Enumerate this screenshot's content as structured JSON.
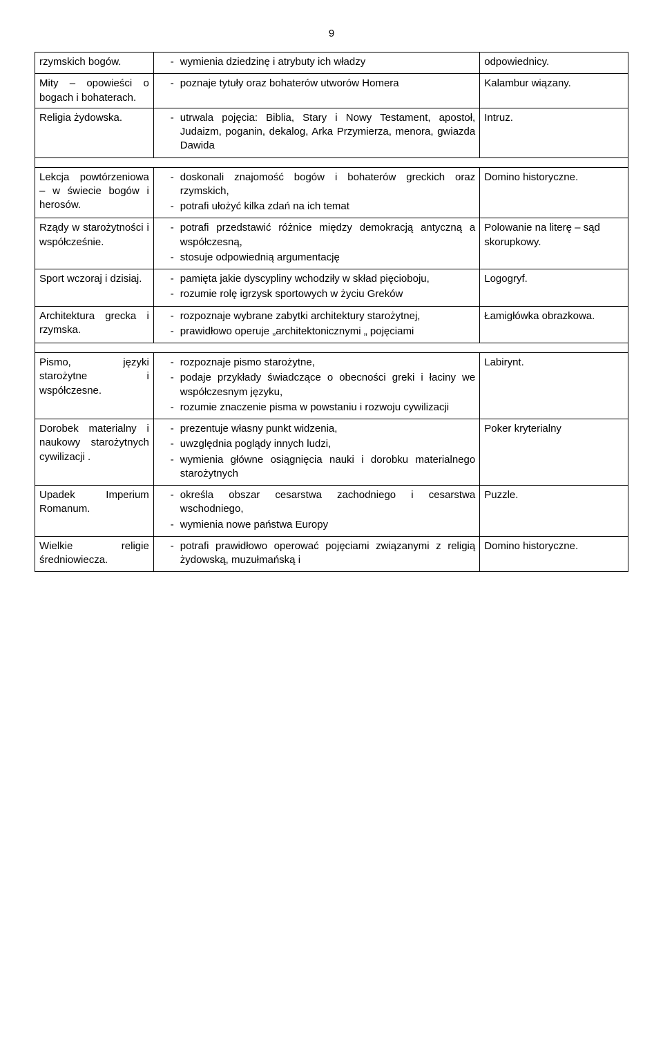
{
  "page_number": "9",
  "colors": {
    "text": "#000000",
    "border": "#000000",
    "background": "#ffffff"
  },
  "rows": [
    {
      "col1": "rzymskich bogów.",
      "col2_items": [
        "wymienia dziedzinę i atrybuty ich władzy"
      ],
      "col3": "odpowiednicy."
    },
    {
      "col1": "Mity – opowieści o bogach i bohaterach.",
      "col2_items": [
        "poznaje tytuły oraz bohaterów utworów Homera"
      ],
      "col3": "Kalambur wiązany."
    },
    {
      "col1": "Religia żydowska.",
      "col2_items": [
        "utrwala pojęcia: Biblia, Stary i Nowy Testament, apostoł, Judaizm, poganin, dekalog, Arka Przymierza, menora, gwiazda Dawida"
      ],
      "col3": "Intruz."
    },
    {
      "col1": "Lekcja powtórzeniowa – w świecie bogów i herosów.",
      "col2_items": [
        "doskonali znajomość bogów i bohaterów greckich oraz rzymskich,",
        "potrafi ułożyć kilka zdań na ich temat"
      ],
      "col3": "Domino historyczne."
    },
    {
      "col1": "Rządy w starożytności i współcześnie.",
      "col2_items": [
        "potrafi przedstawić różnice między demokracją antyczną a współczesną,",
        "stosuje odpowiednią argumentację"
      ],
      "col3": "Polowanie na literę – sąd skorupkowy."
    },
    {
      "col1": "Sport wczoraj i dzisiaj.",
      "col2_items": [
        "pamięta jakie dyscypliny wchodziły w skład pięcioboju,",
        "rozumie rolę igrzysk sportowych w życiu Greków"
      ],
      "col3": "Logogryf."
    },
    {
      "col1": "Architektura grecka i rzymska.",
      "col2_items": [
        "rozpoznaje wybrane zabytki architektury starożytnej,",
        "prawidłowo operuje „architektonicznymi „ pojęciami"
      ],
      "col3": "Łamigłówka obrazkowa."
    },
    {
      "col1": "Pismo, języki starożytne i współczesne.",
      "col2_items": [
        "rozpoznaje pismo starożytne,",
        "podaje przykłady świadczące o obecności greki i łaciny we współczesnym języku,",
        "rozumie znaczenie pisma w powstaniu i rozwoju cywilizacji"
      ],
      "col3": "Labirynt."
    },
    {
      "col1": "Dorobek materialny i naukowy starożytnych cywilizacji .",
      "col2_items": [
        "prezentuje własny punkt widzenia,",
        "uwzględnia poglądy innych ludzi,",
        "wymienia główne osiągnięcia nauki i dorobku materialnego starożytnych"
      ],
      "col3": "Poker kryterialny"
    },
    {
      "col1": "Upadek Imperium Romanum.",
      "col2_items": [
        "określa obszar cesarstwa zachodniego i cesarstwa wschodniego,",
        "wymienia nowe państwa Europy"
      ],
      "col3": "Puzzle."
    },
    {
      "col1": "Wielkie religie średniowiecza.",
      "col2_items": [
        "potrafi prawidłowo operować pojęciami związanymi z religią żydowską, muzułmańską i"
      ],
      "col3": "Domino historyczne."
    }
  ]
}
